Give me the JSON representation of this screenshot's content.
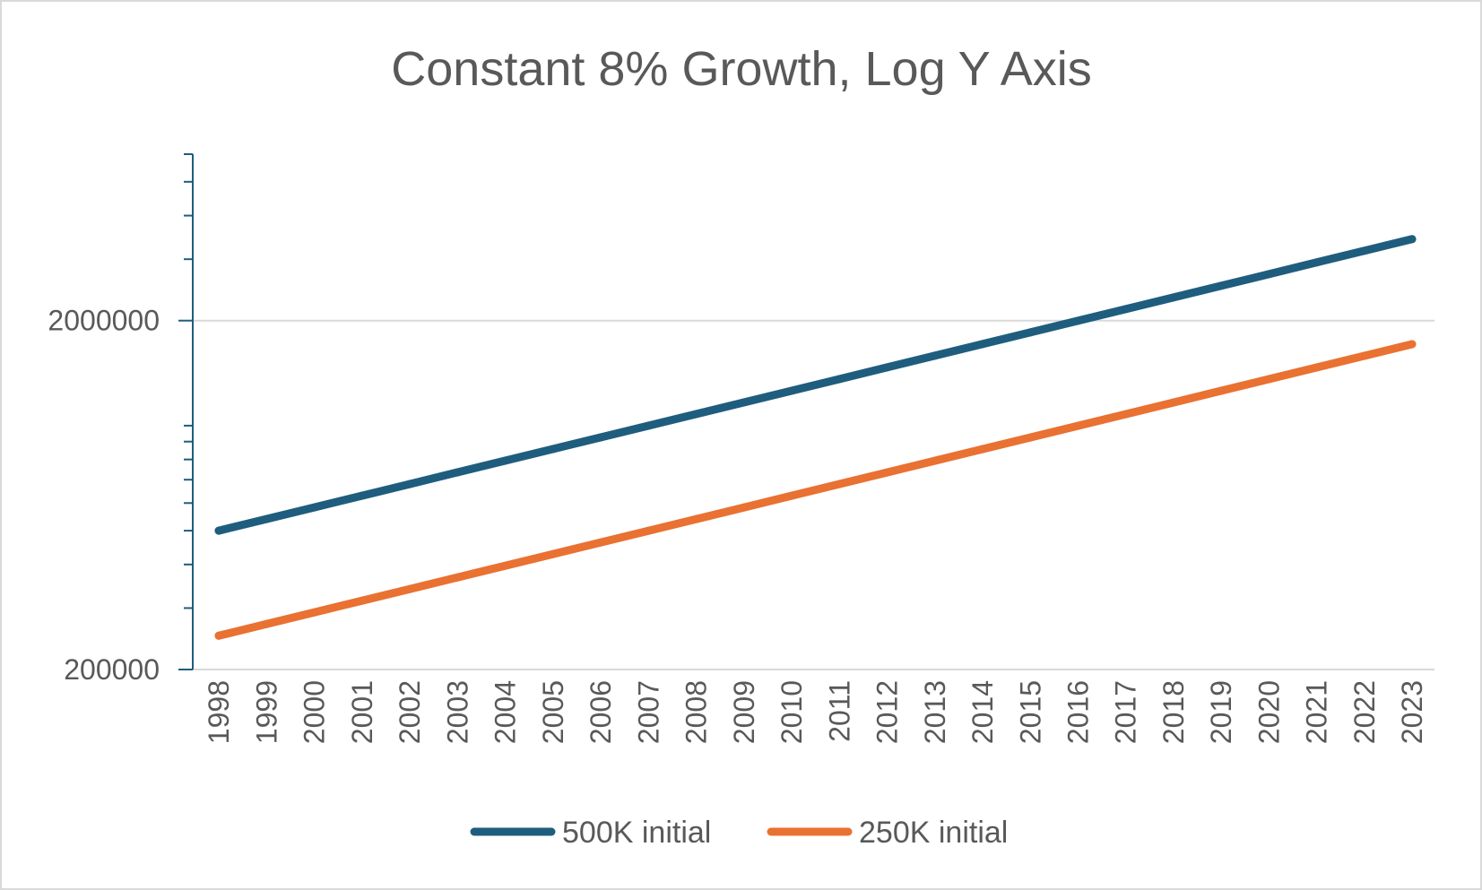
{
  "chart_data": {
    "type": "line",
    "title": "Constant 8% Growth, Log Y Axis",
    "xlabel": "",
    "ylabel": "",
    "y_scale": "log",
    "ylim": [
      200000,
      6000000
    ],
    "y_tick_labels": [
      "200000",
      "2000000"
    ],
    "grid": true,
    "legend_position": "bottom",
    "x": [
      "1998",
      "1999",
      "2000",
      "2001",
      "2002",
      "2003",
      "2004",
      "2005",
      "2006",
      "2007",
      "2008",
      "2009",
      "2010",
      "2011",
      "2012",
      "2013",
      "2014",
      "2015",
      "2016",
      "2017",
      "2018",
      "2019",
      "2020",
      "2021",
      "2022",
      "2023"
    ],
    "series": [
      {
        "name": "500K initial",
        "color": "#1f5d7e",
        "values": [
          500000,
          540000,
          583200,
          629856,
          680244,
          734664,
          793437,
          856912,
          925465,
          999502,
          1079462,
          1165819,
          1259085,
          1359812,
          1468597,
          1586085,
          1712971,
          1850009,
          1998010,
          2157851,
          2330479,
          2516917,
          2718270,
          2935732,
          3170590,
          3424237
        ]
      },
      {
        "name": "250K initial",
        "color": "#e97132",
        "values": [
          250000,
          270000,
          291600,
          314928,
          340122,
          367332,
          396719,
          428456,
          462733,
          499751,
          539731,
          582909,
          629542,
          679906,
          734298,
          793042,
          856486,
          925004,
          999005,
          1078925,
          1165239,
          1258458,
          1359135,
          1467866,
          1585295,
          1712119
        ]
      }
    ]
  }
}
